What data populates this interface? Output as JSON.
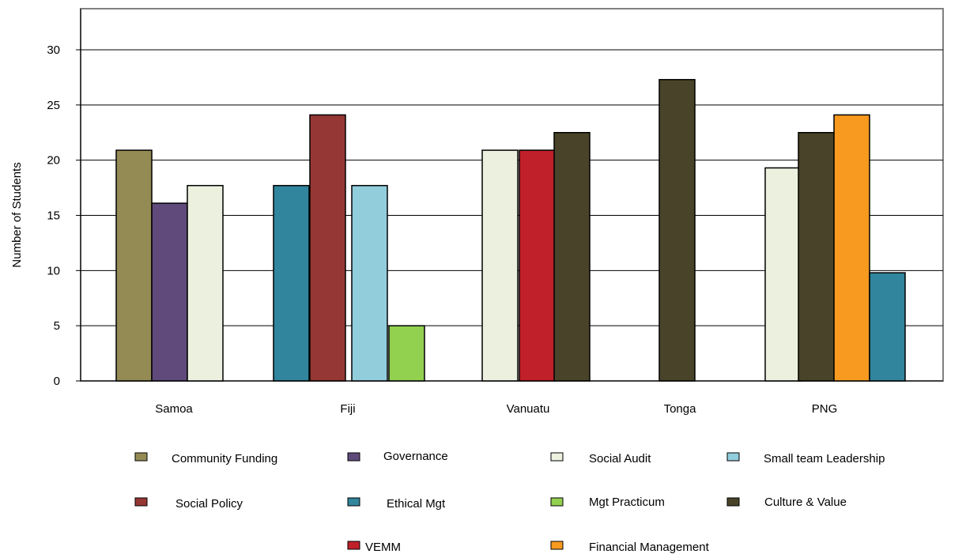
{
  "chart_data": {
    "type": "bar",
    "title": "",
    "xlabel": "",
    "ylabel": "Number of Students",
    "ylim": [
      0,
      33
    ],
    "yticks": [
      0,
      5,
      10,
      15,
      20,
      25,
      30
    ],
    "grid": true,
    "legend_position": "bottom",
    "groups": [
      {
        "name": "Samoa",
        "bars": [
          {
            "series": "Community Funding",
            "value": 20.9
          },
          {
            "series": "Governance",
            "value": 16.1
          },
          {
            "series": "Social Audit",
            "value": 17.7
          }
        ]
      },
      {
        "name": "Fiji",
        "bars": [
          {
            "series": "Ethical Mgt",
            "value": 17.7
          },
          {
            "series": "Social Policy",
            "value": 24.1
          },
          {
            "series": "Small team Leadership",
            "value": 17.7
          },
          {
            "series": "Mgt Practicum",
            "value": 5.0
          }
        ]
      },
      {
        "name": "Vanuatu",
        "bars": [
          {
            "series": "Social Audit",
            "value": 20.9
          },
          {
            "series": "VEMM",
            "value": 20.9
          },
          {
            "series": "Culture & Value",
            "value": 22.5
          }
        ]
      },
      {
        "name": "Tonga",
        "bars": [
          {
            "series": "Culture & Value",
            "value": 27.3
          }
        ]
      },
      {
        "name": "PNG",
        "bars": [
          {
            "series": "Social Audit",
            "value": 19.3
          },
          {
            "series": "Culture & Value",
            "value": 22.5
          },
          {
            "series": "Financial Management",
            "value": 24.1
          },
          {
            "series": "Ethical Mgt",
            "value": 9.8
          }
        ]
      }
    ],
    "series": [
      {
        "name": "Community Funding",
        "color": "#948a54"
      },
      {
        "name": "Governance",
        "color": "#604a7b"
      },
      {
        "name": "Social Audit",
        "color": "#ebf1de"
      },
      {
        "name": "Small team Leadership",
        "color": "#92cddc"
      },
      {
        "name": "Social Policy",
        "color": "#953735"
      },
      {
        "name": "Ethical Mgt",
        "color": "#31859c"
      },
      {
        "name": "Mgt Practicum",
        "color": "#92d050"
      },
      {
        "name": "Culture & Value",
        "color": "#494429"
      },
      {
        "name": "VEMM",
        "color": "#c0202a"
      },
      {
        "name": "Financial Management",
        "color": "#f79a1f"
      }
    ]
  }
}
